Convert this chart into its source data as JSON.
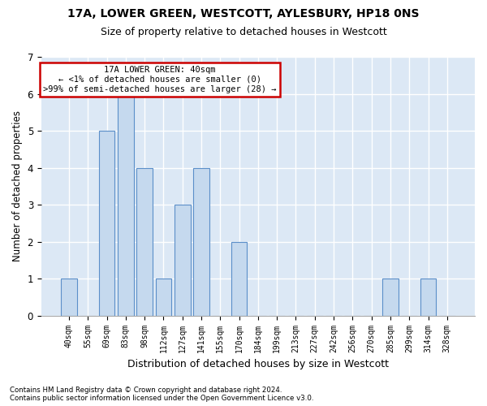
{
  "title1": "17A, LOWER GREEN, WESTCOTT, AYLESBURY, HP18 0NS",
  "title2": "Size of property relative to detached houses in Westcott",
  "xlabel": "Distribution of detached houses by size in Westcott",
  "ylabel": "Number of detached properties",
  "categories": [
    "40sqm",
    "55sqm",
    "69sqm",
    "83sqm",
    "98sqm",
    "112sqm",
    "127sqm",
    "141sqm",
    "155sqm",
    "170sqm",
    "184sqm",
    "199sqm",
    "213sqm",
    "227sqm",
    "242sqm",
    "256sqm",
    "270sqm",
    "285sqm",
    "299sqm",
    "314sqm",
    "328sqm"
  ],
  "values": [
    1,
    0,
    5,
    6,
    4,
    1,
    3,
    4,
    0,
    2,
    0,
    0,
    0,
    0,
    0,
    0,
    0,
    1,
    0,
    1,
    0
  ],
  "bar_color": "#c5d9ee",
  "bar_edge_color": "#5b8fc9",
  "annotation_line1": "17A LOWER GREEN: 40sqm",
  "annotation_line2": "← <1% of detached houses are smaller (0)",
  "annotation_line3": ">99% of semi-detached houses are larger (28) →",
  "annotation_box_color": "#ffffff",
  "annotation_box_edge_color": "#cc0000",
  "ylim": [
    0,
    7
  ],
  "yticks": [
    0,
    1,
    2,
    3,
    4,
    5,
    6,
    7
  ],
  "background_color": "#dce8f5",
  "grid_color": "#ffffff",
  "fig_background": "#ffffff",
  "footer1": "Contains HM Land Registry data © Crown copyright and database right 2024.",
  "footer2": "Contains public sector information licensed under the Open Government Licence v3.0."
}
